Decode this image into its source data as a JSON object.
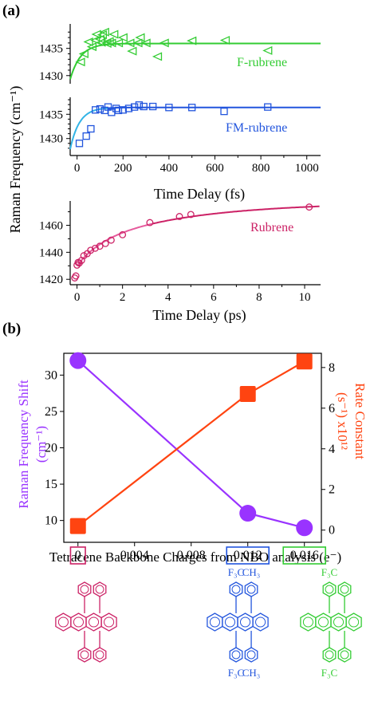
{
  "colors": {
    "f_rubrene": "#33cc33",
    "fm_rubrene": "#2255dd",
    "fm_fit_early": "#33b4e6",
    "rubrene": "#cc2266",
    "rubrene_fit_early": "#e65a9c",
    "shift": "#9933ff",
    "rate": "#ff4411",
    "axis": "#000000"
  },
  "chart_data": [
    {
      "type": "scatter",
      "panel_label": "(a)",
      "panel": "a-top",
      "ylabel": "Raman Frequency (cm⁻¹)",
      "ylim": [
        1428.5,
        1439.5
      ],
      "yticks": [
        1430,
        1435
      ],
      "xlim": [
        -30,
        1060
      ],
      "series": [
        {
          "name": "F-rubrene",
          "marker": "triangle-left",
          "color": "#33cc33",
          "x": [
            15,
            30,
            50,
            65,
            80,
            85,
            100,
            105,
            110,
            120,
            130,
            140,
            150,
            160,
            180,
            200,
            230,
            240,
            265,
            275,
            300,
            350,
            380,
            500,
            645,
            830
          ],
          "y": [
            1432.5,
            1434.0,
            1436.2,
            1435.3,
            1436.5,
            1437.6,
            1436.7,
            1436.1,
            1437.5,
            1438.0,
            1435.9,
            1436.3,
            1436.0,
            1437.6,
            1436.0,
            1437.0,
            1436.0,
            1434.5,
            1436.0,
            1437.0,
            1436.0,
            1433.5,
            1436.0,
            1436.4,
            1436.5,
            1434.6
          ]
        }
      ],
      "fit": {
        "plateau": 1435.9,
        "start": 1429.3,
        "tau_fs": 45,
        "x0": -30
      }
    },
    {
      "type": "scatter",
      "panel": "a-middle",
      "xlabel": "Time Delay (fs)",
      "ylim": [
        1426.5,
        1438.5
      ],
      "yticks": [
        1430,
        1435
      ],
      "xlim": [
        -30,
        1060
      ],
      "xticks": [
        0,
        200,
        400,
        600,
        800,
        1000
      ],
      "series": [
        {
          "name": "FM-rubrene",
          "marker": "square",
          "color": "#2255dd",
          "x": [
            10,
            40,
            60,
            80,
            100,
            120,
            135,
            150,
            170,
            180,
            200,
            225,
            250,
            270,
            290,
            330,
            400,
            500,
            640,
            830
          ],
          "y": [
            1429.0,
            1430.5,
            1432.0,
            1435.9,
            1436.1,
            1435.8,
            1436.5,
            1435.4,
            1436.2,
            1435.8,
            1435.9,
            1436.2,
            1436.5,
            1436.9,
            1436.6,
            1436.6,
            1436.4,
            1436.4,
            1435.6,
            1436.5
          ]
        }
      ],
      "fit": {
        "plateau": 1436.4,
        "start": 1427.8,
        "tau_fs": 40,
        "x0": -30
      }
    },
    {
      "type": "scatter",
      "panel": "a-bottom",
      "xlabel": "Time Delay (ps)",
      "ylim": [
        1416,
        1478
      ],
      "yticks": [
        1420,
        1440,
        1460
      ],
      "xlim": [
        -0.3,
        10.7
      ],
      "xticks": [
        0,
        2,
        4,
        6,
        8,
        10
      ],
      "series": [
        {
          "name": "Rubrene",
          "marker": "circle",
          "color": "#cc2266",
          "x": [
            -0.1,
            -0.05,
            0.0,
            0.05,
            0.1,
            0.2,
            0.3,
            0.45,
            0.6,
            0.8,
            1.0,
            1.25,
            1.5,
            2.0,
            3.2,
            4.5,
            5.0,
            10.2
          ],
          "y": [
            1421.0,
            1422.5,
            1430.5,
            1432.5,
            1432.0,
            1434.0,
            1437.5,
            1439.0,
            1441.5,
            1443.0,
            1444.5,
            1446.5,
            1449.0,
            1453.0,
            1462.0,
            1466.5,
            1468.0,
            1473.5
          ]
        }
      ],
      "fit": {
        "start": 1430.0,
        "amp1": 15.0,
        "tau1": 1.0,
        "amp2": 32.0,
        "tau2": 4.5
      }
    },
    {
      "type": "line",
      "panel_label": "(b)",
      "panel": "b",
      "xlabel": "Tetracene Backbone Charges from NBO analysis (e⁻)",
      "xlim": [
        -0.001,
        0.0172
      ],
      "xticks": [
        0,
        0.004,
        0.008,
        0.012,
        0.016
      ],
      "xtick_labels": [
        "0",
        "0.004",
        "0.008",
        "0.012",
        "0.016"
      ],
      "boxed_xticks": [
        {
          "label": "0",
          "color": "#cc2266"
        },
        {
          "label": "0.012",
          "color": "#2255dd"
        },
        {
          "label": "0.016",
          "color": "#33cc33"
        }
      ],
      "series": [
        {
          "name": "Raman Frequency Shift",
          "axis": "left",
          "ylabel_line1": "Raman Frequency Shift",
          "ylabel_line2": "(cm⁻¹)",
          "ylim": [
            7,
            33
          ],
          "yticks": [
            10,
            15,
            20,
            25,
            30
          ],
          "x": [
            0,
            0.012,
            0.016
          ],
          "y": [
            32,
            11,
            9
          ],
          "color": "#9933ff",
          "marker": "circle"
        },
        {
          "name": "Rate Constant",
          "axis": "right",
          "ylabel_line1": "Rate Constant",
          "ylabel_line2": "(s⁻¹) x10¹²",
          "ylim": [
            -0.6,
            8.7
          ],
          "yticks": [
            0,
            2,
            4,
            6,
            8
          ],
          "x": [
            0,
            0.012,
            0.016
          ],
          "y": [
            0.2,
            6.7,
            8.3
          ],
          "color": "#ff4411",
          "marker": "square"
        }
      ]
    }
  ],
  "molecules": [
    {
      "substituents": []
    },
    {
      "substituents": [
        "F₃C",
        "CH₃",
        "F₃C",
        "CH₃"
      ]
    },
    {
      "substituents": [
        "F₃C",
        "F₃C"
      ]
    }
  ]
}
